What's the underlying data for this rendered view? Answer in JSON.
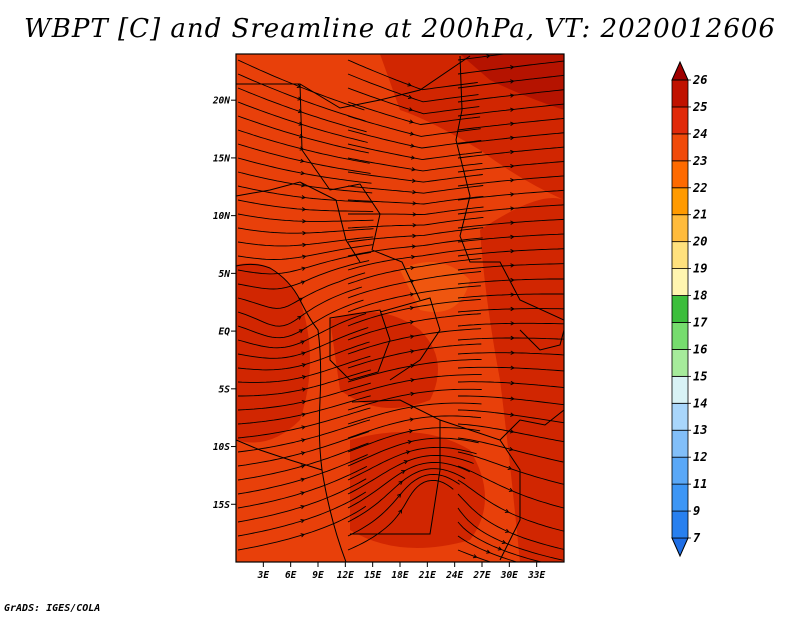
{
  "title": "WBPT [C] and Sreamline at 200hPa, VT: 2020012606",
  "credit": "GrADS: IGES/COLA",
  "map": {
    "lat_range": [
      -20,
      24
    ],
    "lon_range": [
      0,
      36
    ],
    "lat_ticks": [
      {
        "value": 20,
        "label": "20N"
      },
      {
        "value": 15,
        "label": "15N"
      },
      {
        "value": 10,
        "label": "10N"
      },
      {
        "value": 5,
        "label": "5N"
      },
      {
        "value": 0,
        "label": "EQ"
      },
      {
        "value": -5,
        "label": "5S"
      },
      {
        "value": -10,
        "label": "10S"
      },
      {
        "value": -15,
        "label": "15S"
      }
    ],
    "lon_ticks": [
      {
        "value": 3,
        "label": "3E"
      },
      {
        "value": 6,
        "label": "6E"
      },
      {
        "value": 9,
        "label": "9E"
      },
      {
        "value": 12,
        "label": "12E"
      },
      {
        "value": 15,
        "label": "15E"
      },
      {
        "value": 18,
        "label": "18E"
      },
      {
        "value": 21,
        "label": "21E"
      },
      {
        "value": 24,
        "label": "24E"
      },
      {
        "value": 27,
        "label": "27E"
      },
      {
        "value": 30,
        "label": "30E"
      },
      {
        "value": 33,
        "label": "33E"
      }
    ],
    "field_colors": {
      "base": "#e8400a",
      "warm": "#cc2200",
      "hot": "#b01000",
      "cool": "#f05a10"
    }
  },
  "colorbar": {
    "levels": [
      "7",
      "9",
      "11",
      "12",
      "13",
      "14",
      "15",
      "16",
      "17",
      "18",
      "19",
      "20",
      "21",
      "22",
      "23",
      "24",
      "25",
      "26"
    ],
    "colors": [
      "#1e6ee6",
      "#2880ef",
      "#3d96f5",
      "#5aa8f7",
      "#82bff9",
      "#a9d6fb",
      "#d8f2f5",
      "#a6eb9b",
      "#76dc6e",
      "#3cbe3c",
      "#fff5b0",
      "#ffe17d",
      "#ffbb3c",
      "#ff9a00",
      "#fe6a00",
      "#f04a0a",
      "#e12a0a",
      "#c01200",
      "#a00000"
    ]
  }
}
